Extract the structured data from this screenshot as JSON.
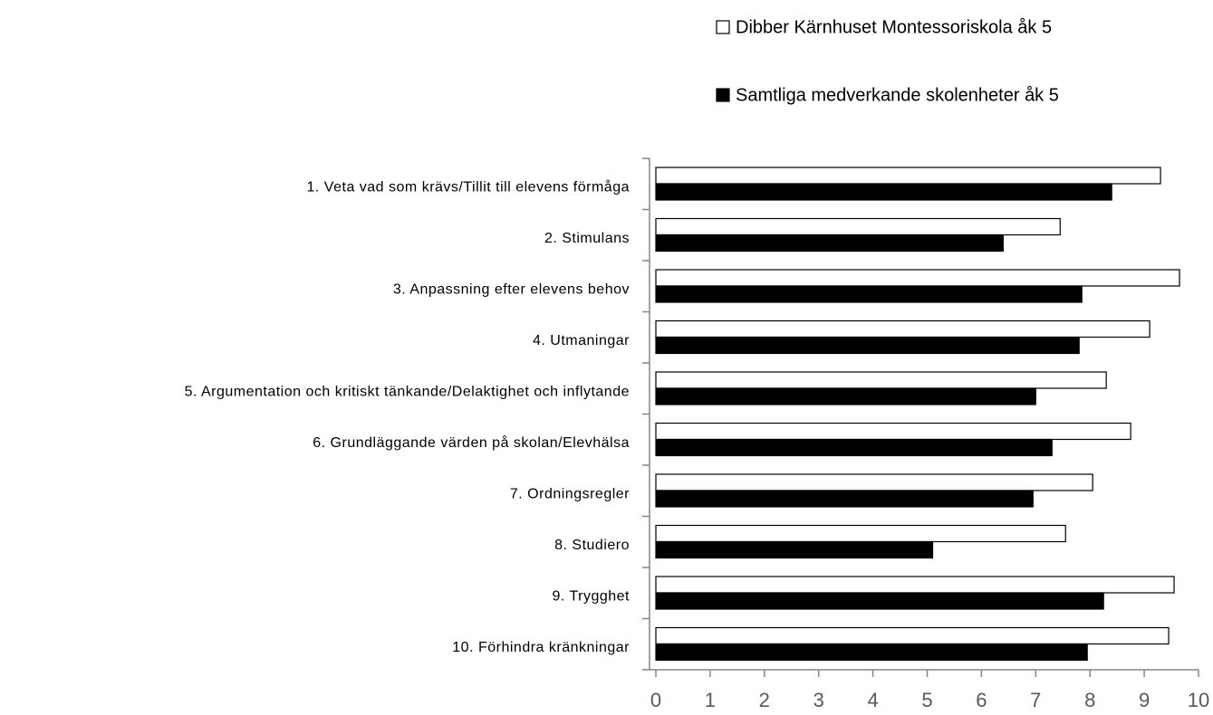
{
  "chart_data": {
    "type": "bar",
    "orientation": "horizontal",
    "categories": [
      "1. Veta vad som krävs/Tillit till elevens förmåga",
      "2. Stimulans",
      "3. Anpassning efter elevens behov",
      "4. Utmaningar",
      "5. Argumentation och kritiskt tänkande/Delaktighet och inflytande",
      "6. Grundläggande värden på skolan/Elevhälsa",
      "7. Ordningsregler",
      "8. Studiero",
      "9. Trygghet",
      "10. Förhindra kränkningar"
    ],
    "series": [
      {
        "name": "Dibber Kärnhuset Montessoriskola åk 5",
        "color": "#ffffff",
        "values": [
          9.3,
          7.45,
          9.65,
          9.1,
          8.3,
          8.75,
          8.05,
          7.55,
          9.55,
          9.45
        ]
      },
      {
        "name": "Samtliga medverkande skolenheter åk 5",
        "color": "#000000",
        "values": [
          8.4,
          6.4,
          7.85,
          7.8,
          7.0,
          7.3,
          6.95,
          5.1,
          8.25,
          7.95
        ]
      }
    ],
    "xlim": [
      0,
      10
    ],
    "xticks": [
      0,
      1,
      2,
      3,
      4,
      5,
      6,
      7,
      8,
      9,
      10
    ],
    "legend": "top-right"
  }
}
